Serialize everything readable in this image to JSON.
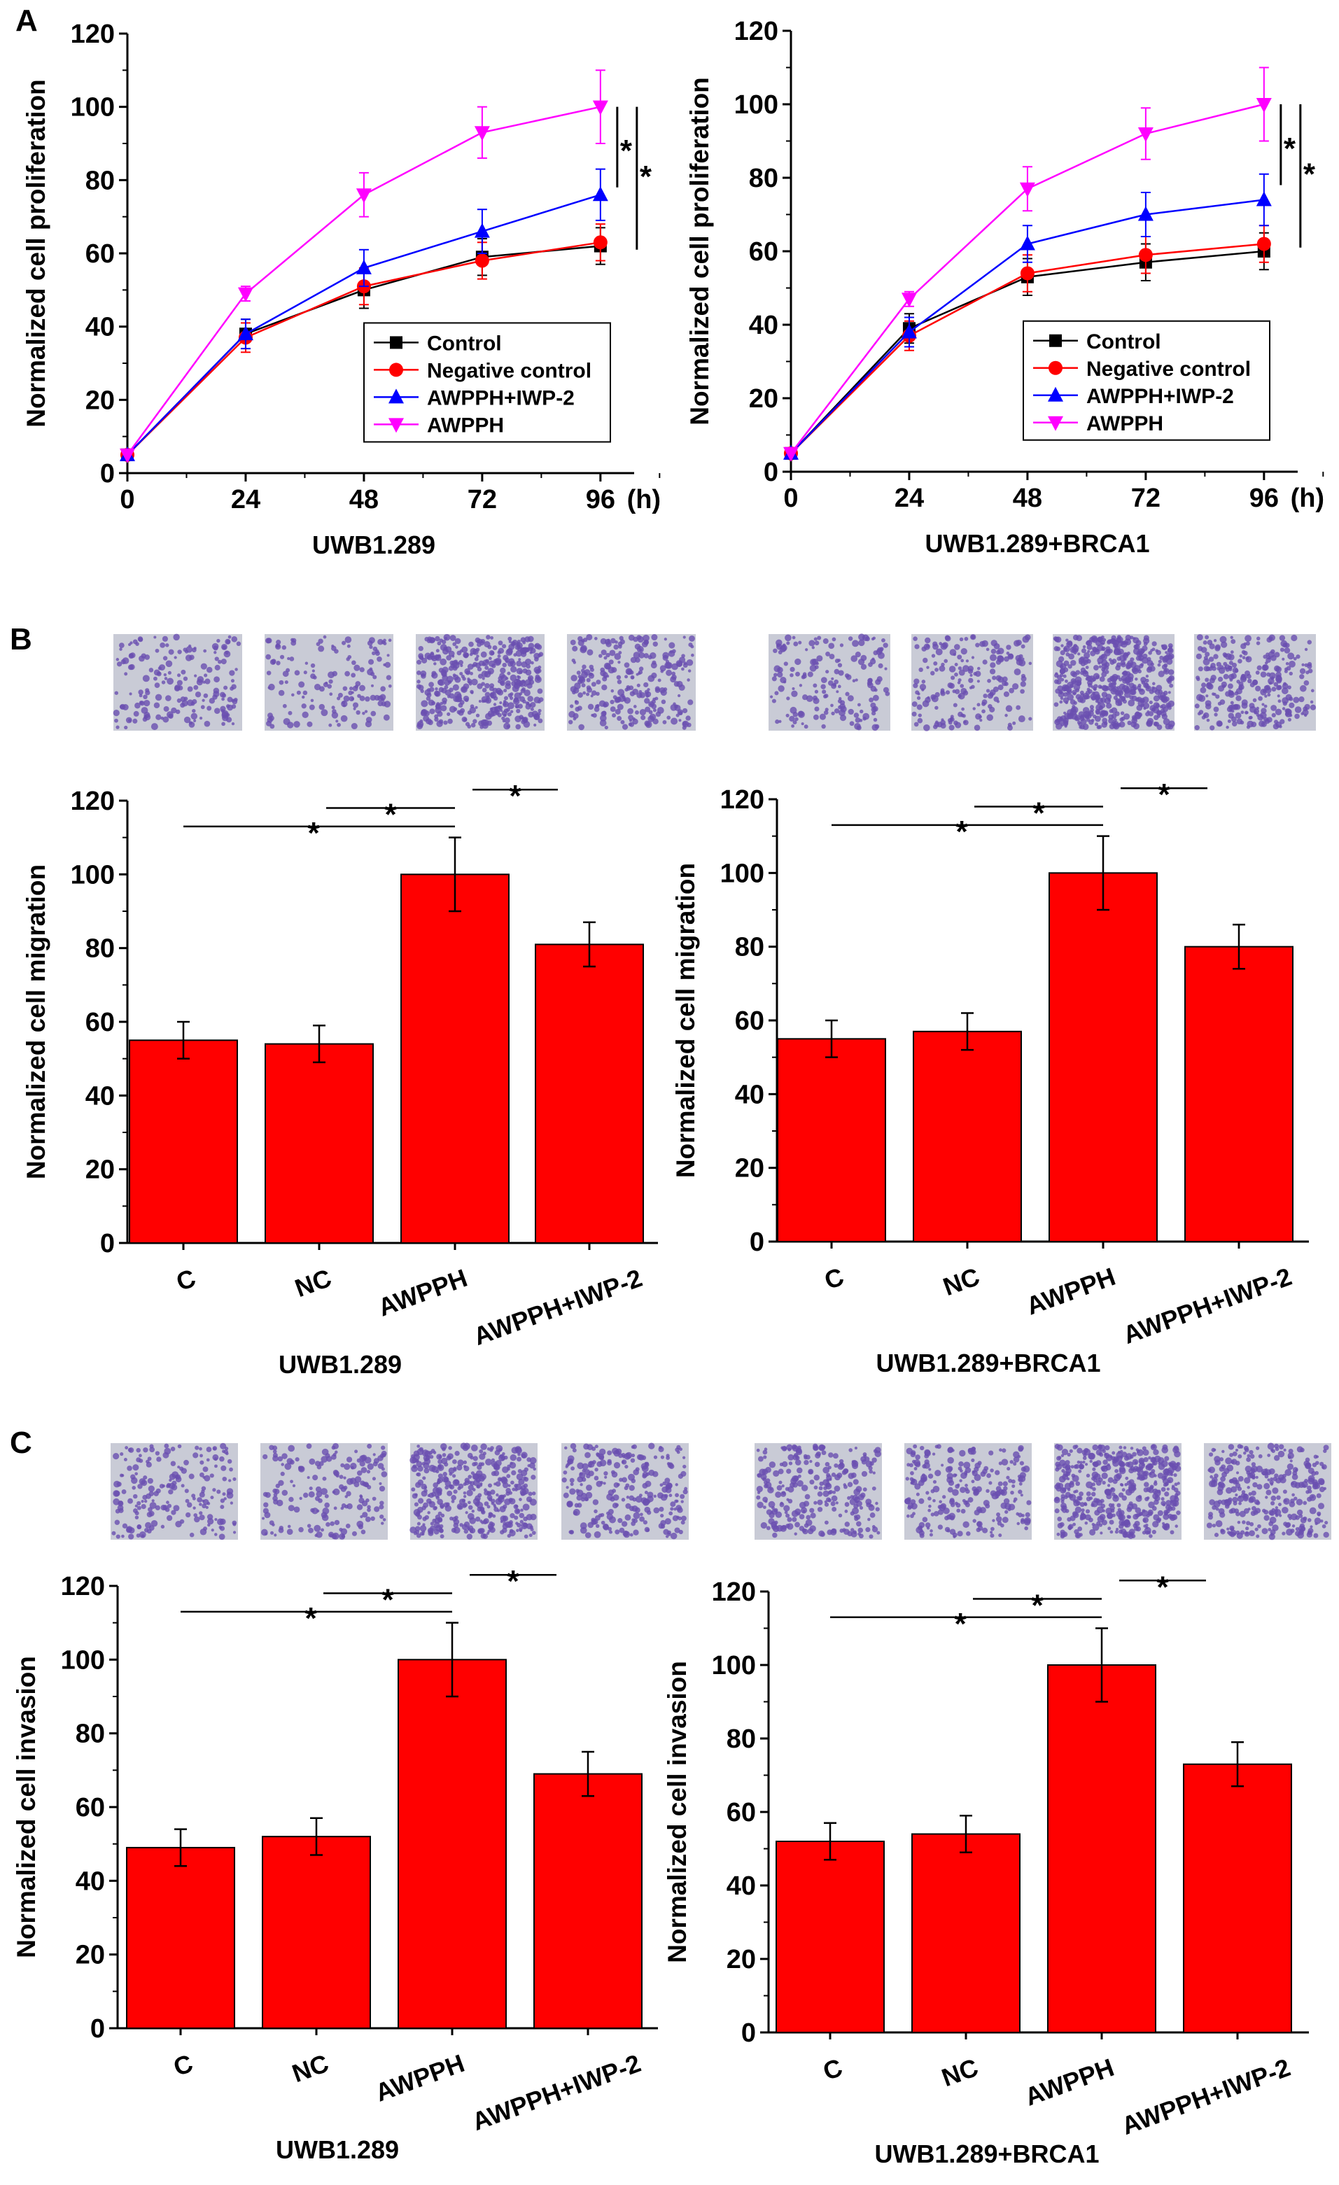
{
  "panel_labels": [
    "A",
    "B",
    "C"
  ],
  "chart_data": [
    {
      "type": "line",
      "panel": "A",
      "xlabel": "UWB1.289",
      "ylabel": "Normalized cell proliferation",
      "x_unit": "(h)",
      "x": [
        0,
        24,
        48,
        72,
        96
      ],
      "xlim": [
        0,
        100
      ],
      "ylim": [
        0,
        120
      ],
      "xticks": [
        "0",
        "24",
        "48",
        "72",
        "96"
      ],
      "yticks": [
        "0",
        "20",
        "40",
        "60",
        "80",
        "100",
        "120"
      ],
      "legend": "bottom-right",
      "significance": [
        "*",
        "*"
      ],
      "series": [
        {
          "name": "Control",
          "color": "#000000",
          "marker": "square",
          "values": [
            5,
            38,
            50,
            59,
            62
          ],
          "errors": [
            0,
            4,
            5,
            5,
            5
          ]
        },
        {
          "name": "Negative control",
          "color": "#ff0000",
          "marker": "circle",
          "values": [
            5,
            37,
            51,
            58,
            63
          ],
          "errors": [
            0,
            4,
            5,
            5,
            5
          ]
        },
        {
          "name": "AWPPH+IWP-2",
          "color": "#0000ff",
          "marker": "triangle-up",
          "values": [
            5,
            38,
            56,
            66,
            76
          ],
          "errors": [
            0,
            4,
            5,
            6,
            7
          ]
        },
        {
          "name": "AWPPH",
          "color": "#ff00ff",
          "marker": "triangle-down",
          "values": [
            5,
            49,
            76,
            93,
            100
          ],
          "errors": [
            0,
            2,
            6,
            7,
            10
          ]
        }
      ]
    },
    {
      "type": "line",
      "panel": "A",
      "xlabel": "UWB1.289+BRCA1",
      "ylabel": "Normalized cell proliferation",
      "x_unit": "(h)",
      "x": [
        0,
        24,
        48,
        72,
        96
      ],
      "xlim": [
        0,
        100
      ],
      "ylim": [
        0,
        120
      ],
      "xticks": [
        "0",
        "24",
        "48",
        "72",
        "96"
      ],
      "yticks": [
        "0",
        "20",
        "40",
        "60",
        "80",
        "100",
        "120"
      ],
      "legend": "bottom-right",
      "significance": [
        "*",
        "*"
      ],
      "series": [
        {
          "name": "Control",
          "color": "#000000",
          "marker": "square",
          "values": [
            5,
            39,
            53,
            57,
            60
          ],
          "errors": [
            0,
            4,
            5,
            5,
            5
          ]
        },
        {
          "name": "Negative control",
          "color": "#ff0000",
          "marker": "circle",
          "values": [
            5,
            37,
            54,
            59,
            62
          ],
          "errors": [
            0,
            4,
            5,
            5,
            5
          ]
        },
        {
          "name": "AWPPH+IWP-2",
          "color": "#0000ff",
          "marker": "triangle-up",
          "values": [
            5,
            38,
            62,
            70,
            74
          ],
          "errors": [
            0,
            4,
            5,
            6,
            7
          ]
        },
        {
          "name": "AWPPH",
          "color": "#ff00ff",
          "marker": "triangle-down",
          "values": [
            5,
            47,
            77,
            92,
            100
          ],
          "errors": [
            0,
            2,
            6,
            7,
            10
          ]
        }
      ]
    },
    {
      "type": "bar",
      "panel": "B",
      "xlabel": "UWB1.289",
      "ylabel": "Normalized cell migration",
      "ylim": [
        0,
        120
      ],
      "categories": [
        "C",
        "NC",
        "AWPPH",
        "AWPPH+IWP-2"
      ],
      "values": [
        55,
        54,
        100,
        81
      ],
      "errors": [
        5,
        5,
        10,
        6
      ],
      "yticks": [
        "0",
        "20",
        "40",
        "60",
        "80",
        "100",
        "120"
      ],
      "bar_color": "#ff0000",
      "significance": [
        "*",
        "*",
        "*"
      ]
    },
    {
      "type": "bar",
      "panel": "B",
      "xlabel": "UWB1.289+BRCA1",
      "ylabel": "Normalized cell migration",
      "ylim": [
        0,
        120
      ],
      "categories": [
        "C",
        "NC",
        "AWPPH",
        "AWPPH+IWP-2"
      ],
      "values": [
        55,
        57,
        100,
        80
      ],
      "errors": [
        5,
        5,
        10,
        6
      ],
      "yticks": [
        "0",
        "20",
        "40",
        "60",
        "80",
        "100",
        "120"
      ],
      "bar_color": "#ff0000",
      "significance": [
        "*",
        "*",
        "*"
      ]
    },
    {
      "type": "bar",
      "panel": "C",
      "xlabel": "UWB1.289",
      "ylabel": "Normalized cell invasion",
      "ylim": [
        0,
        120
      ],
      "categories": [
        "C",
        "NC",
        "AWPPH",
        "AWPPH+IWP-2"
      ],
      "values": [
        49,
        52,
        100,
        69
      ],
      "errors": [
        5,
        5,
        10,
        6
      ],
      "yticks": [
        "0",
        "20",
        "40",
        "60",
        "80",
        "100",
        "120"
      ],
      "bar_color": "#ff0000",
      "significance": [
        "*",
        "*",
        "*"
      ]
    },
    {
      "type": "bar",
      "panel": "C",
      "xlabel": "UWB1.289+BRCA1",
      "ylabel": "Normalized cell invasion",
      "ylim": [
        0,
        120
      ],
      "categories": [
        "C",
        "NC",
        "AWPPH",
        "AWPPH+IWP-2"
      ],
      "values": [
        52,
        54,
        100,
        73
      ],
      "errors": [
        5,
        5,
        10,
        6
      ],
      "yticks": [
        "0",
        "20",
        "40",
        "60",
        "80",
        "100",
        "120"
      ],
      "bar_color": "#ff0000",
      "significance": [
        "*",
        "*",
        "*"
      ]
    }
  ],
  "micrograph_colors": {
    "background": "#c9cbd6",
    "cells": "#6a4fb0"
  }
}
